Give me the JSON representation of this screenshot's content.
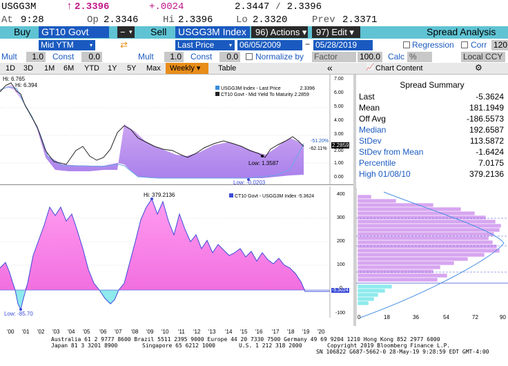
{
  "quote": {
    "ticker": "USGG3M",
    "last": "2.3396",
    "change": "+.0024",
    "bid_ask": "2.3447 ∕ 2.3396",
    "at_label": "At",
    "time": "9:28",
    "op_label": "Op",
    "open": "2.3346",
    "hi_label": "Hi",
    "high": "2.3396",
    "lo_label": "Lo",
    "low": "2.3320",
    "prev_label": "Prev",
    "prev": "2.3371"
  },
  "toolbar": {
    "buy_label": "Buy",
    "buy_security": "GT10 Govt",
    "sell_label": "Sell",
    "sell_security": "USGG3M Index",
    "actions_label": "96) Actions ▾",
    "edit_label": "97) Edit ▾",
    "title": "Spread Analysis"
  },
  "row4": {
    "buy_field": "Mid YTM",
    "sell_field": "Last Price",
    "start_date": "06/05/2009",
    "end_date": "05/28/2019",
    "regression_label": "Regression",
    "corr_label": "Corr",
    "corr_value": "120"
  },
  "row5": {
    "mult_label": "Mult",
    "mult1": "1.0",
    "const_label": "Const",
    "const1": "0.0",
    "mult2": "1.0",
    "const2": "0.0",
    "normalize_label": "Normalize by",
    "factor_select": "Factor",
    "factor_value": "100.0",
    "calc_label": "Calc",
    "calc_select": "%",
    "ccy_select": "Local CCY"
  },
  "tabs": [
    "1D",
    "3D",
    "1M",
    "6M",
    "YTD",
    "1Y",
    "5Y",
    "Max",
    "Weekly ▾",
    "Table"
  ],
  "chart_content_label": "Chart Content",
  "summary": {
    "title": "Spread Summary",
    "rows": [
      {
        "k": "Last",
        "v": "-5.3624",
        "blue": false
      },
      {
        "k": "Mean",
        "v": "181.1949",
        "blue": false
      },
      {
        "k": "Off Avg",
        "v": "-186.5573",
        "blue": false
      },
      {
        "k": "Median",
        "v": "192.6587",
        "blue": true
      },
      {
        "k": "StDev",
        "v": "113.5872",
        "blue": true
      },
      {
        "k": "StDev from Mean",
        "v": "-1.6424",
        "blue": true
      },
      {
        "k": "Percentile",
        "v": "7.0175",
        "blue": true
      },
      {
        "k": "High 01/08/10",
        "v": "379.2136",
        "blue": true
      }
    ]
  },
  "chart_top": {
    "legend1": "USGG3M Index - Last Price",
    "legend1_val": "2.3396",
    "legend2": "CT10 Govt - Mid Yield To Maturity",
    "legend2_val": "2.2859",
    "hi1": "Hi: 6.765",
    "hi2": "Hi: 6.394",
    "low1": "Low: 1.3587",
    "low2": "Low: -0.0203",
    "pct1": "-51.20%",
    "pct2": "-62.11%",
    "last_tag": "2.2859",
    "y_ticks": [
      "7.00",
      "6.00",
      "5.00",
      "4.00",
      "3.00",
      "2.00",
      "1.00",
      "0.00"
    ]
  },
  "chart_bot": {
    "legend": "CT10 Govt - USGG3M Index",
    "legend_val": "-5.3624",
    "hi": "Hi: 379.2136",
    "low": "Low: -85.70",
    "last_tag": "-5.3624",
    "y_ticks": [
      "400",
      "300",
      "200",
      "100",
      "0",
      "-100"
    ],
    "x_ticks": [
      "'00",
      "'01",
      "'02",
      "'03",
      "'04",
      "'05",
      "'06",
      "'07",
      "'08",
      "'09",
      "'10",
      "'11",
      "'12",
      "'13",
      "'14",
      "'15",
      "'16",
      "'17",
      "'18",
      "'19",
      "'20"
    ]
  },
  "histo": {
    "x_ticks": [
      "0",
      "18",
      "36",
      "54",
      "72",
      "90"
    ]
  },
  "footer": {
    "line1": "Australia 61 2 9777 8600 Brazil 5511 2395 9000 Europe 44 20 7330 7500 Germany 49 69 9204 1210 Hong Kong 852 2977 6000",
    "line2a": "Japan 81 3 3201 8900",
    "line2b": "Singapore 65 6212 1000",
    "line2c": "U.S. 1 212 318 2000",
    "line2d": "Copyright 2019 Bloomberg Finance L.P.",
    "line3": "SN 106822 G687-5662-0 28-May-19  9:28:59 EDT  GMT-4:00"
  },
  "colors": {
    "cyan_bar": "#5fc3d3",
    "field_blue": "#1a5ac0",
    "tab_active": "#e88d1a",
    "spread_pink": "#f06ce0",
    "spread_line": "#3b4bd8",
    "yield_purple": "#c58bf0",
    "neg_cyan": "#7fe3e6"
  }
}
